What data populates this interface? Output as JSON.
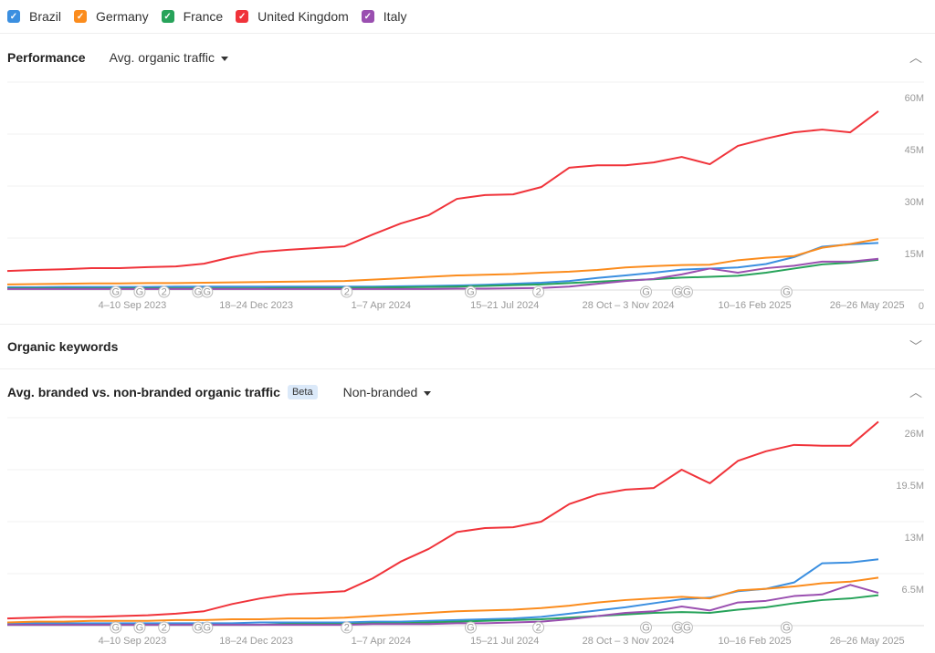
{
  "legend": [
    {
      "label": "Brazil",
      "color": "#3b8fe0"
    },
    {
      "label": "Germany",
      "color": "#fb8c1d"
    },
    {
      "label": "France",
      "color": "#27a35a"
    },
    {
      "label": "United Kingdom",
      "color": "#f0333a"
    },
    {
      "label": "Italy",
      "color": "#9a4fb0"
    }
  ],
  "performance": {
    "title": "Performance",
    "metric": "Avg. organic traffic"
  },
  "keywords": {
    "title": "Organic keywords"
  },
  "branded": {
    "title": "Avg. branded vs. non-branded organic traffic",
    "badge": "Beta",
    "metric": "Non-branded"
  },
  "chart_data": [
    {
      "type": "line",
      "title": "Avg. organic traffic",
      "ylim": [
        0,
        60
      ],
      "yticks": [
        {
          "v": 0,
          "l": "0"
        },
        {
          "v": 15,
          "l": "15M"
        },
        {
          "v": 30,
          "l": "30M"
        },
        {
          "v": 45,
          "l": "45M"
        },
        {
          "v": 60,
          "l": "60M"
        }
      ],
      "xticks": [
        {
          "i": 4.45,
          "l": "4–10 Sep 2023"
        },
        {
          "i": 8.86,
          "l": "18–24 Dec 2023"
        },
        {
          "i": 13.3,
          "l": "1–7 Apr 2024"
        },
        {
          "i": 17.7,
          "l": "15–21 Jul 2024"
        },
        {
          "i": 22.1,
          "l": "28 Oct – 3 Nov 2024"
        },
        {
          "i": 26.6,
          "l": "10–16 Feb 2025"
        },
        {
          "i": 30.6,
          "l": "26–26 May 2025"
        }
      ],
      "annotations": [
        {
          "i": 3.86,
          "l": "G"
        },
        {
          "i": 4.71,
          "l": "G"
        },
        {
          "i": 5.58,
          "l": "2"
        },
        {
          "i": 6.79,
          "l": "G"
        },
        {
          "i": 7.11,
          "l": "G"
        },
        {
          "i": 12.08,
          "l": "2"
        },
        {
          "i": 16.49,
          "l": "G"
        },
        {
          "i": 18.9,
          "l": "2"
        },
        {
          "i": 22.73,
          "l": "G"
        },
        {
          "i": 23.86,
          "l": "G"
        },
        {
          "i": 24.19,
          "l": "G"
        },
        {
          "i": 27.73,
          "l": "G"
        }
      ],
      "series": [
        {
          "name": "Brazil",
          "values": [
            0.8,
            0.8,
            0.9,
            0.9,
            0.9,
            0.9,
            1,
            1,
            1,
            1,
            1,
            1,
            1,
            1,
            1.1,
            1.2,
            1.3,
            1.5,
            1.8,
            2.1,
            2.6,
            3.5,
            4.2,
            5,
            5.9,
            6.2,
            6.5,
            7.5,
            9.5,
            12.5,
            13.2,
            13.6
          ]
        },
        {
          "name": "Germany",
          "values": [
            1.6,
            1.7,
            1.8,
            1.9,
            1.9,
            2,
            2,
            2.1,
            2.2,
            2.3,
            2.4,
            2.5,
            2.6,
            3,
            3.4,
            3.8,
            4.2,
            4.4,
            4.6,
            5,
            5.3,
            5.8,
            6.5,
            6.9,
            7.2,
            7.3,
            8.6,
            9.3,
            9.8,
            12.2,
            13.3,
            14.7
          ]
        },
        {
          "name": "France",
          "values": [
            0.5,
            0.5,
            0.5,
            0.5,
            0.5,
            0.5,
            0.5,
            0.5,
            0.5,
            0.5,
            0.6,
            0.6,
            0.6,
            0.7,
            0.8,
            0.9,
            1,
            1.2,
            1.4,
            1.6,
            2,
            2.4,
            2.8,
            3.1,
            3.6,
            3.8,
            4.1,
            5,
            6.2,
            7.4,
            7.9,
            8.7
          ]
        },
        {
          "name": "United Kingdom",
          "values": [
            5.5,
            5.8,
            6,
            6.3,
            6.3,
            6.6,
            6.8,
            7.6,
            9.5,
            11,
            11.6,
            12.1,
            12.6,
            16,
            19.2,
            21.6,
            26.3,
            27.4,
            27.6,
            29.7,
            35.3,
            36,
            36,
            36.8,
            38.4,
            36.3,
            41.6,
            43.7,
            45.5,
            46.3,
            45.5,
            51.6
          ]
        },
        {
          "name": "Italy",
          "values": [
            0.3,
            0.3,
            0.3,
            0.3,
            0.3,
            0.3,
            0.3,
            0.3,
            0.3,
            0.3,
            0.3,
            0.3,
            0.3,
            0.3,
            0.3,
            0.3,
            0.4,
            0.4,
            0.5,
            0.6,
            1,
            1.8,
            2.6,
            3.2,
            4.5,
            6.2,
            5,
            6.3,
            7,
            8.2,
            8.2,
            9
          ]
        }
      ]
    },
    {
      "type": "line",
      "title": "Non-branded",
      "ylim": [
        0,
        26
      ],
      "yticks": [
        {
          "v": 6.5,
          "l": "6.5M"
        },
        {
          "v": 13,
          "l": "13M"
        },
        {
          "v": 19.5,
          "l": "19.5M"
        },
        {
          "v": 26,
          "l": "26M"
        }
      ],
      "xticks": [
        {
          "i": 4.45,
          "l": "4–10 Sep 2023"
        },
        {
          "i": 8.86,
          "l": "18–24 Dec 2023"
        },
        {
          "i": 13.3,
          "l": "1–7 Apr 2024"
        },
        {
          "i": 17.7,
          "l": "15–21 Jul 2024"
        },
        {
          "i": 22.1,
          "l": "28 Oct – 3 Nov 2024"
        },
        {
          "i": 26.6,
          "l": "10–16 Feb 2025"
        },
        {
          "i": 30.6,
          "l": "26–26 May 2025"
        }
      ],
      "annotations": [
        {
          "i": 3.86,
          "l": "G"
        },
        {
          "i": 4.71,
          "l": "G"
        },
        {
          "i": 5.58,
          "l": "2"
        },
        {
          "i": 6.79,
          "l": "G"
        },
        {
          "i": 7.11,
          "l": "G"
        },
        {
          "i": 12.08,
          "l": "2"
        },
        {
          "i": 16.49,
          "l": "G"
        },
        {
          "i": 18.9,
          "l": "2"
        },
        {
          "i": 22.73,
          "l": "G"
        },
        {
          "i": 23.86,
          "l": "G"
        },
        {
          "i": 24.19,
          "l": "G"
        },
        {
          "i": 27.73,
          "l": "G"
        }
      ],
      "series": [
        {
          "name": "Brazil",
          "values": [
            0.3,
            0.3,
            0.3,
            0.3,
            0.3,
            0.3,
            0.3,
            0.3,
            0.3,
            0.4,
            0.4,
            0.4,
            0.4,
            0.5,
            0.5,
            0.6,
            0.7,
            0.8,
            0.9,
            1.1,
            1.5,
            1.9,
            2.3,
            2.8,
            3.3,
            3.5,
            4.3,
            4.6,
            5.4,
            7.8,
            7.9,
            8.3
          ]
        },
        {
          "name": "Germany",
          "values": [
            0.4,
            0.5,
            0.5,
            0.6,
            0.6,
            0.6,
            0.7,
            0.7,
            0.8,
            0.8,
            0.9,
            0.9,
            1,
            1.2,
            1.4,
            1.6,
            1.8,
            1.9,
            2,
            2.2,
            2.5,
            2.9,
            3.2,
            3.4,
            3.6,
            3.4,
            4.4,
            4.6,
            4.9,
            5.3,
            5.5,
            6
          ]
        },
        {
          "name": "France",
          "values": [
            0.1,
            0.1,
            0.1,
            0.1,
            0.1,
            0.1,
            0.1,
            0.1,
            0.1,
            0.1,
            0.2,
            0.2,
            0.2,
            0.3,
            0.3,
            0.4,
            0.5,
            0.6,
            0.7,
            0.8,
            1,
            1.2,
            1.4,
            1.6,
            1.7,
            1.6,
            2,
            2.3,
            2.8,
            3.2,
            3.4,
            3.8
          ]
        },
        {
          "name": "United Kingdom",
          "values": [
            0.9,
            1,
            1.1,
            1.1,
            1.2,
            1.3,
            1.5,
            1.8,
            2.7,
            3.4,
            3.9,
            4.1,
            4.3,
            5.9,
            8,
            9.6,
            11.7,
            12.2,
            12.3,
            13,
            15.2,
            16.4,
            17,
            17.2,
            19.5,
            17.8,
            20.6,
            21.8,
            22.6,
            22.5,
            22.5,
            25.5
          ]
        },
        {
          "name": "Italy",
          "values": [
            0.1,
            0.1,
            0.1,
            0.1,
            0.1,
            0.1,
            0.1,
            0.1,
            0.1,
            0.1,
            0.1,
            0.1,
            0.1,
            0.2,
            0.2,
            0.2,
            0.3,
            0.3,
            0.4,
            0.5,
            0.8,
            1.2,
            1.6,
            1.8,
            2.4,
            1.9,
            2.9,
            3.1,
            3.7,
            3.9,
            5.1,
            4.1
          ]
        }
      ]
    }
  ]
}
